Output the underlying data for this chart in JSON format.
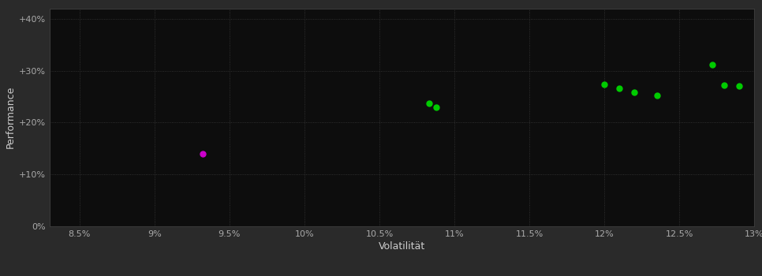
{
  "background_color": "#2a2a2a",
  "plot_bg_color": "#0d0d0d",
  "grid_color": "#3a3a3a",
  "xlabel": "Volatilität",
  "ylabel": "Performance",
  "xlim": [
    0.083,
    0.13
  ],
  "ylim": [
    0.0,
    0.42
  ],
  "xticks": [
    0.085,
    0.09,
    0.095,
    0.1,
    0.105,
    0.11,
    0.115,
    0.12,
    0.125,
    0.13
  ],
  "yticks": [
    0.0,
    0.1,
    0.2,
    0.3,
    0.4
  ],
  "ytick_labels": [
    "0%",
    "+10%",
    "+20%",
    "+30%",
    "+40%"
  ],
  "xtick_labels": [
    "8.5%",
    "9%",
    "9.5%",
    "10%",
    "10.5%",
    "11%",
    "11.5%",
    "12%",
    "12.5%",
    "13%"
  ],
  "points_green": [
    [
      0.1083,
      0.237
    ],
    [
      0.1088,
      0.229
    ],
    [
      0.12,
      0.274
    ],
    [
      0.121,
      0.266
    ],
    [
      0.122,
      0.258
    ],
    [
      0.1235,
      0.252
    ],
    [
      0.1272,
      0.311
    ],
    [
      0.128,
      0.272
    ],
    [
      0.129,
      0.27
    ]
  ],
  "points_magenta": [
    [
      0.0932,
      0.14
    ]
  ],
  "green_color": "#00cc00",
  "magenta_color": "#cc00cc",
  "marker_size": 5,
  "tick_color": "#aaaaaa",
  "label_color": "#cccccc",
  "label_fontsize": 9,
  "tick_fontsize": 8
}
